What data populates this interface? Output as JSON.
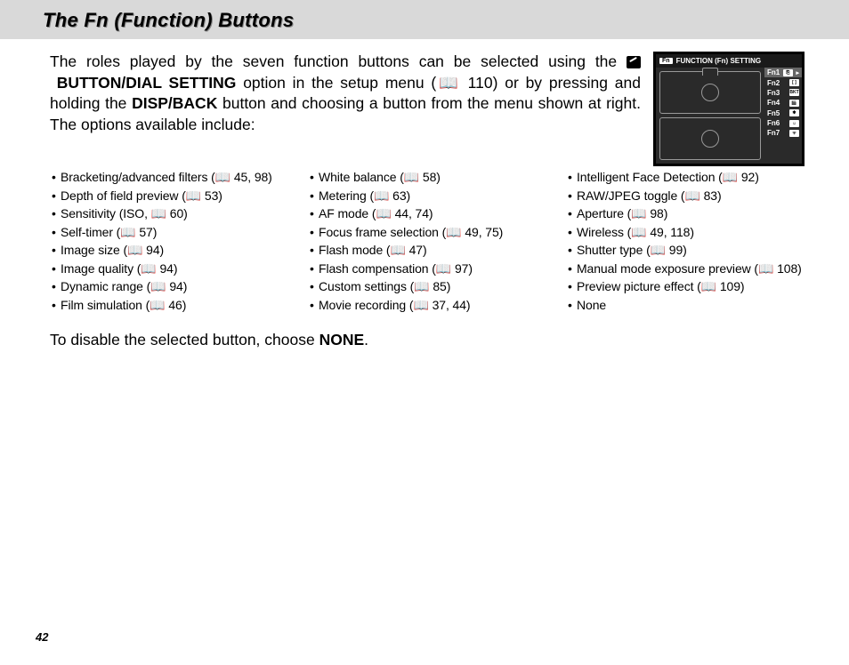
{
  "title": "The Fn (Function) Buttons",
  "intro": {
    "part1": "The roles played by the seven function buttons can be selected using the ",
    "setting_label": "BUTTON/DIAL SETTING",
    "part2": " option in the setup menu (",
    "page_ref1": "📖 110",
    "part3": ") or by pressing and holding the ",
    "disp_back": "DISP/BACK",
    "part4": " button and choosing a button from the menu shown at right.  The options available include:"
  },
  "options": {
    "col1": [
      "Bracketing/advanced filters (📖 45, 98)",
      "Depth of field preview (📖 53)",
      "Sensitivity (ISO, 📖 60)",
      "Self-timer (📖 57)",
      "Image size (📖 94)",
      "Image quality (📖 94)",
      "Dynamic range (📖 94)",
      "Film simulation (📖 46)"
    ],
    "col2": [
      "White balance (📖 58)",
      "Metering (📖 63)",
      "AF mode (📖 44, 74)",
      "Focus frame selection (📖 49, 75)",
      "Flash mode (📖 47)",
      "Flash compensation (📖 97)",
      "Custom settings (📖 85)",
      "Movie recording (📖 37, 44)"
    ],
    "col3": [
      "Intelligent Face Detection (📖 92)",
      "RAW/JPEG toggle (📖 83)",
      "Aperture (📖 98)",
      "Wireless (📖 49, 118)",
      "Shutter type (📖 99)",
      "Manual mode exposure preview (📖 108)",
      "Preview picture effect (📖 109)",
      "None"
    ]
  },
  "closing": {
    "text": "To disable the selected button, choose ",
    "none_label": "NONE",
    "period": "."
  },
  "camera_screen": {
    "header_badge": "Fn",
    "header_text": "FUNCTION (Fn) SETTING",
    "rows": [
      {
        "label": "Fn1",
        "selected": true,
        "icon": "⎘",
        "arrow": "▸"
      },
      {
        "label": "Fn2",
        "selected": false,
        "icon": "[ ]"
      },
      {
        "label": "Fn3",
        "selected": false,
        "icon": "BKT"
      },
      {
        "label": "Fn4",
        "selected": false,
        "icon": "🎬"
      },
      {
        "label": "Fn5",
        "selected": false,
        "icon": "✱"
      },
      {
        "label": "Fn6",
        "selected": false,
        "icon": "☺"
      },
      {
        "label": "Fn7",
        "selected": false,
        "icon": "ᯤ"
      }
    ]
  },
  "page_number": "42",
  "colors": {
    "titlebar_bg": "#d9d9d9",
    "screen_bg": "#1a1a1a",
    "screen_body_bg": "#2a2a2a",
    "selected_row_bg": "#666666",
    "text": "#000000",
    "screen_text": "#ffffff"
  }
}
